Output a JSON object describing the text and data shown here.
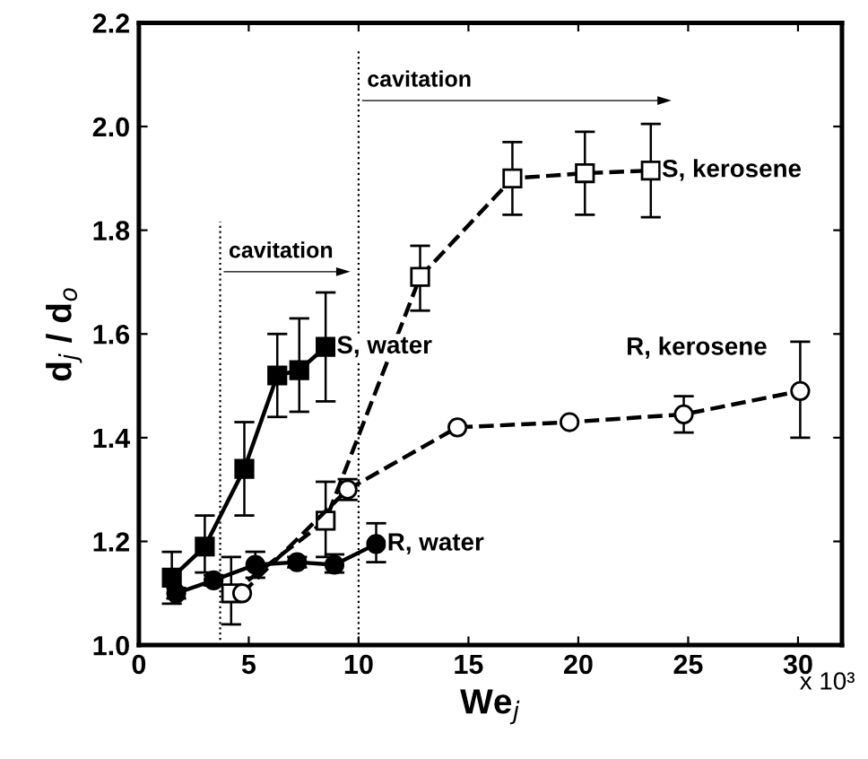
{
  "chart_data": {
    "type": "line",
    "xlabel": "We$_{j}$",
    "ylabel": "d$_{j}$ / d$_{o}$",
    "xlim": [
      0,
      32
    ],
    "ylim": [
      1.0,
      2.2
    ],
    "xticks": [
      0,
      5,
      10,
      15,
      20,
      25,
      30
    ],
    "yticks": [
      {
        "value": 1.0,
        "label": "1.0"
      },
      {
        "value": 1.2,
        "label": "1.2"
      },
      {
        "value": 1.4,
        "label": "1.4"
      },
      {
        "value": 1.6,
        "label": "1.6"
      },
      {
        "value": 1.8,
        "label": "1.8"
      },
      {
        "value": 2.0,
        "label": "2.0"
      },
      {
        "value": 2.2,
        "label": "2.2"
      }
    ],
    "grid": false,
    "legend": false,
    "series": [
      {
        "name": "S, water",
        "color": "#000000",
        "marker": "square",
        "line_style": "solid",
        "x": [
          1.5,
          3.0,
          4.8,
          6.3,
          7.3,
          8.5
        ],
        "values": [
          1.13,
          1.19,
          1.34,
          1.52,
          1.53,
          1.575
        ],
        "errors": [
          [
            1.08,
            1.18
          ],
          [
            1.14,
            1.25
          ],
          [
            1.25,
            1.43
          ],
          [
            1.44,
            1.6
          ],
          [
            1.45,
            1.63
          ],
          [
            1.47,
            1.68
          ]
        ]
      },
      {
        "name": "R, water",
        "color": "#000000",
        "marker": "circle",
        "line_style": "solid",
        "x": [
          1.7,
          3.4,
          5.3,
          7.2,
          8.9,
          10.8
        ],
        "values": [
          1.1,
          1.125,
          1.155,
          1.16,
          1.155,
          1.195
        ],
        "errors": [
          [
            1.09,
            1.11
          ],
          [
            1.115,
            1.135
          ],
          [
            1.13,
            1.18
          ],
          [
            1.15,
            1.17
          ],
          [
            1.14,
            1.175
          ],
          [
            1.16,
            1.235
          ]
        ]
      },
      {
        "name": "S, kerosene",
        "color": "#000000",
        "marker": "square",
        "line_style": "dashed",
        "x": [
          4.2,
          8.5,
          12.8,
          17.0,
          20.3,
          23.3
        ],
        "values": [
          1.1,
          1.24,
          1.71,
          1.9,
          1.91,
          1.915
        ],
        "errors": [
          [
            1.04,
            1.17
          ],
          [
            1.17,
            1.315
          ],
          [
            1.645,
            1.77
          ],
          [
            1.83,
            1.97
          ],
          [
            1.83,
            1.99
          ],
          [
            1.825,
            2.005
          ]
        ]
      },
      {
        "name": "R, kerosene",
        "color": "#000000",
        "marker": "circle",
        "line_style": "dashed",
        "x": [
          4.7,
          9.5,
          14.5,
          19.6,
          24.8,
          30.1
        ],
        "values": [
          1.1,
          1.3,
          1.42,
          1.43,
          1.445,
          1.49
        ],
        "errors": [
          null,
          [
            1.28,
            1.32
          ],
          null,
          null,
          [
            1.41,
            1.48
          ],
          [
            1.4,
            1.585
          ]
        ]
      }
    ],
    "ref_lines": [
      {
        "axis": "x",
        "value": 3.7,
        "label": "cavitation",
        "line_style": "dotted",
        "color": "#000000"
      },
      {
        "axis": "x",
        "value": 10,
        "label": "cavitation",
        "line_style": "dotted",
        "color": "#000000"
      }
    ],
    "annotations": [
      "x 10³"
    ]
  }
}
